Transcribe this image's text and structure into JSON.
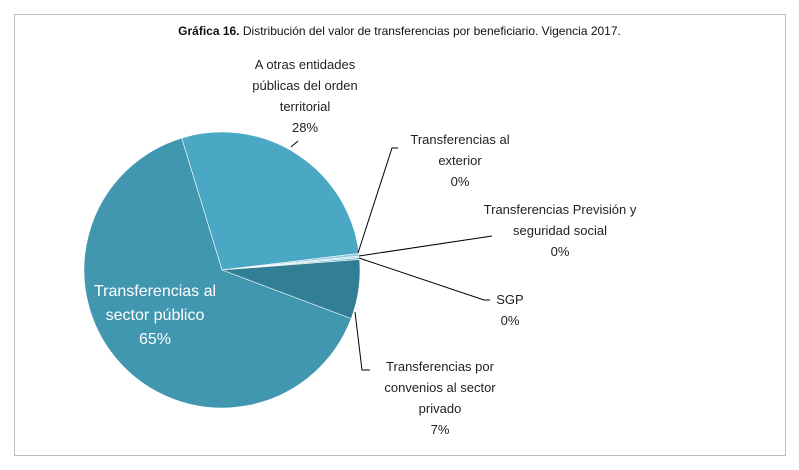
{
  "chart_data": {
    "type": "pie",
    "title_label": "Gráfica 16.",
    "title": "Distribución del valor de transferencias por beneficiario. Vigencia 2017.",
    "categories": [
      "A otras entidades públicas del orden territorial",
      "Transferencias al exterior",
      "Transferencias Previsión y seguridad social",
      "SGP",
      "Transferencias por convenios al sector privado",
      "Transferencias al sector público"
    ],
    "values": [
      28,
      0.3,
      0.2,
      0.2,
      7,
      65
    ],
    "value_labels": [
      "28%",
      "0%",
      "0%",
      "0%",
      "7%",
      "65%"
    ],
    "colors": [
      "#4aa8c4",
      "#8fc8dc",
      "#b3dbe8",
      "#6fb5cc",
      "#327f95",
      "#4196b0"
    ]
  }
}
